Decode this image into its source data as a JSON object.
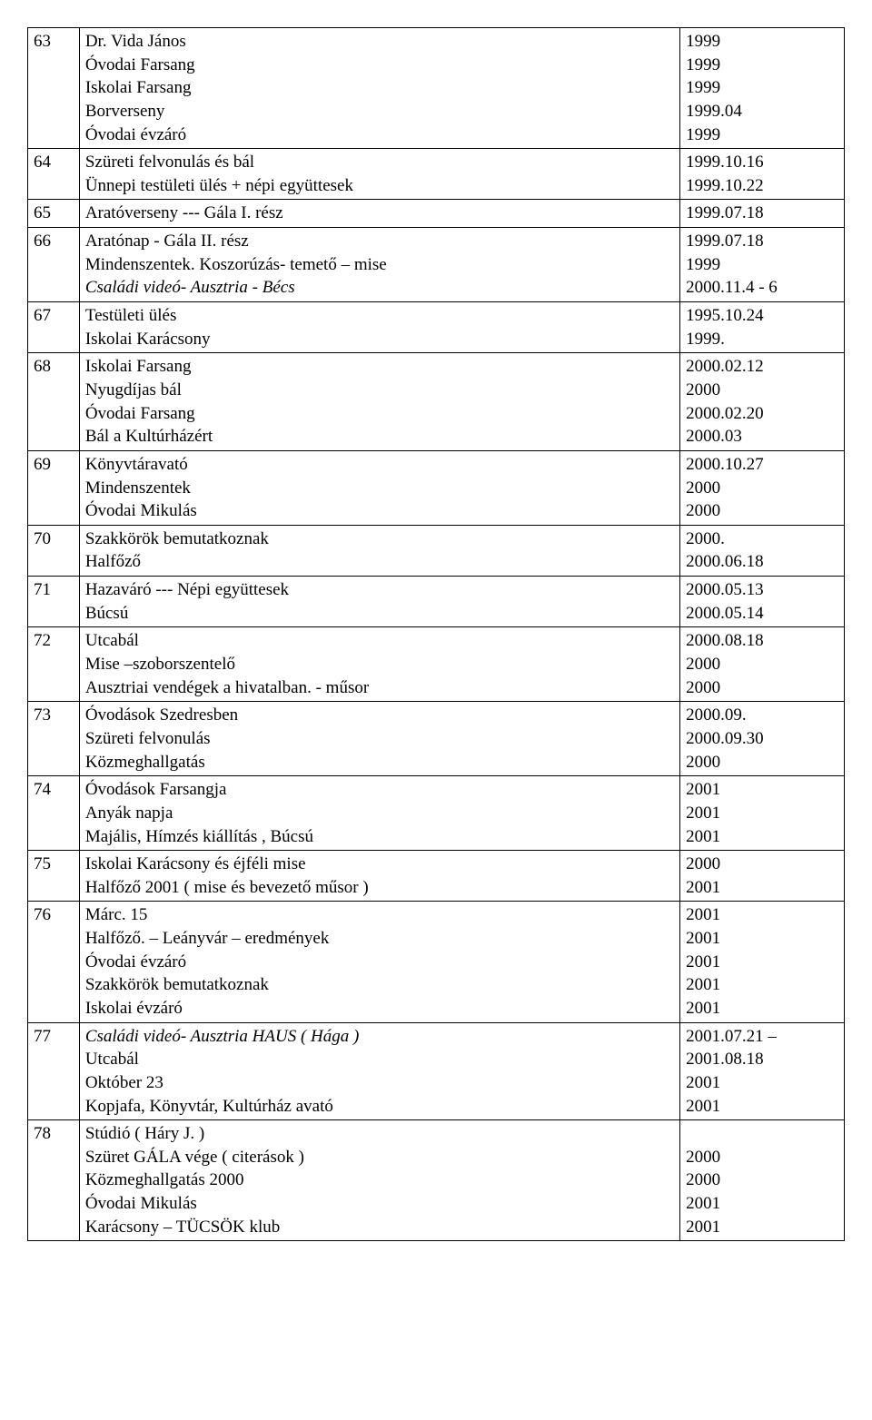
{
  "rows": [
    {
      "idx": "63",
      "desc": [
        {
          "text": "Dr. Vida János"
        },
        {
          "text": "Óvodai Farsang"
        },
        {
          "text": "Iskolai Farsang"
        },
        {
          "text": "Borverseny"
        },
        {
          "text": "Óvodai évzáró"
        }
      ],
      "dates": [
        "1999",
        "1999",
        "1999",
        "1999.04",
        "1999"
      ]
    },
    {
      "idx": "64",
      "desc": [
        {
          "text": "Szüreti felvonulás és bál"
        },
        {
          "text": "Ünnepi testületi ülés  + népi együttesek"
        }
      ],
      "dates": [
        "1999.10.16",
        "1999.10.22"
      ]
    },
    {
      "idx": "65",
      "desc": [
        {
          "text": "Aratóverseny   --- Gála            I. rész"
        }
      ],
      "dates": [
        "1999.07.18"
      ]
    },
    {
      "idx": "66",
      "desc": [
        {
          "text": "Aratónap   - Gála   II. rész"
        },
        {
          "text": "Mindenszentek.  Koszorúzás- temető – mise"
        },
        {
          "text": "Családi videó- Ausztria - Bécs",
          "italic": true
        }
      ],
      "dates": [
        "1999.07.18",
        "1999",
        "2000.11.4 - 6"
      ]
    },
    {
      "idx": "67",
      "desc": [
        {
          "text": "Testületi ülés"
        },
        {
          "text": "Iskolai Karácsony"
        }
      ],
      "dates": [
        "1995.10.24",
        "1999."
      ]
    },
    {
      "idx": "68",
      "desc": [
        {
          "text": "Iskolai Farsang"
        },
        {
          "text": "Nyugdíjas bál"
        },
        {
          "text": "Óvodai Farsang"
        },
        {
          "text": "Bál a Kultúrházért"
        }
      ],
      "dates": [
        "2000.02.12",
        "2000",
        "2000.02.20",
        "2000.03"
      ]
    },
    {
      "idx": "69",
      "desc": [
        {
          "text": "Könyvtáravató"
        },
        {
          "text": "Mindenszentek"
        },
        {
          "text": "Óvodai Mikulás"
        }
      ],
      "dates": [
        "2000.10.27",
        "2000",
        "2000"
      ]
    },
    {
      "idx": "70",
      "desc": [
        {
          "text": "Szakkörök bemutatkoznak"
        },
        {
          "text": "Halfőző"
        }
      ],
      "dates": [
        "2000.",
        "2000.06.18"
      ]
    },
    {
      "idx": "71",
      "desc": [
        {
          "text": "Hazaváró  --- Népi együttesek"
        },
        {
          "text": "Búcsú"
        }
      ],
      "dates": [
        "2000.05.13",
        "2000.05.14"
      ]
    },
    {
      "idx": "72",
      "desc": [
        {
          "text": "Utcabál"
        },
        {
          "text": "Mise –szoborszentelő"
        },
        {
          "text": "Ausztriai vendégek a hivatalban. - műsor"
        }
      ],
      "dates": [
        "2000.08.18",
        "2000",
        "2000"
      ]
    },
    {
      "idx": "73",
      "desc": [
        {
          "text": "Óvodások Szedresben"
        },
        {
          "text": "Szüreti felvonulás"
        },
        {
          "text": "Közmeghallgatás"
        }
      ],
      "dates": [
        "2000.09.",
        "2000.09.30",
        "2000"
      ]
    },
    {
      "idx": "74",
      "desc": [
        {
          "text": "Óvodások Farsangja"
        },
        {
          "text": "Anyák napja"
        },
        {
          "text": "Majális, Hímzés kiállítás , Búcsú"
        }
      ],
      "dates": [
        "2001",
        "2001",
        "2001"
      ]
    },
    {
      "idx": "75",
      "desc": [
        {
          "text": "Iskolai Karácsony és éjféli mise"
        },
        {
          "text": "Halfőző 2001  ( mise és bevezető műsor )"
        }
      ],
      "dates": [
        "2000",
        "2001"
      ]
    },
    {
      "idx": "76",
      "desc": [
        {
          "text": "Márc. 15"
        },
        {
          "text": "Halfőző. – Leányvár – eredmények"
        },
        {
          "text": "Óvodai évzáró"
        },
        {
          "text": "Szakkörök bemutatkoznak"
        },
        {
          "text": "Iskolai évzáró"
        }
      ],
      "dates": [
        "2001",
        "2001",
        "2001",
        "2001",
        "2001"
      ]
    },
    {
      "idx": "77",
      "desc": [
        {
          "text": "Családi videó- Ausztria  HAUS ( Hága )",
          "italic": true
        },
        {
          "text": "Utcabál"
        },
        {
          "text": "Október 23"
        },
        {
          "text": "Kopjafa, Könyvtár, Kultúrház avató"
        }
      ],
      "dates": [
        "2001.07.21 –",
        "2001.08.18",
        "2001",
        "2001"
      ]
    },
    {
      "idx": "78",
      "desc": [
        {
          "text": "Stúdió  ( Háry J. )"
        },
        {
          "text": "Szüret GÁLA vége ( citerások )"
        },
        {
          "text": "Közmeghallgatás 2000"
        },
        {
          "text": "Óvodai Mikulás"
        },
        {
          "text": "Karácsony – TÜCSÖK klub"
        }
      ],
      "dates": [
        "",
        "2000",
        "2000",
        "2001",
        "2001"
      ]
    }
  ]
}
